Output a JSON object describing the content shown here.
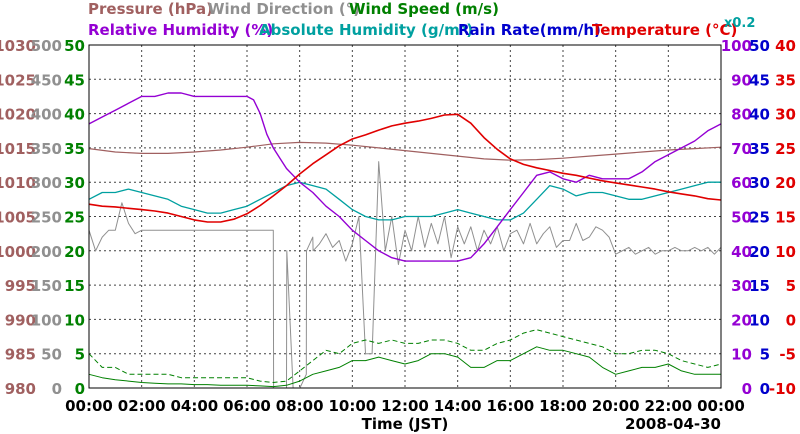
{
  "chart_data": {
    "type": "line",
    "date": "2008-04-30",
    "xlabel": "Time (JST)",
    "x_ticks": [
      "00:00",
      "02:00",
      "04:00",
      "06:00",
      "08:00",
      "10:00",
      "12:00",
      "14:00",
      "16:00",
      "18:00",
      "20:00",
      "22:00",
      "00:00"
    ],
    "grid": true,
    "colors": {
      "pressure": "#a06060",
      "wind_direction": "#909090",
      "wind_speed": "#008000",
      "relative_humidity": "#9400d3",
      "absolute_humidity": "#00a0a0",
      "rain_rate": "#0000cc",
      "temperature": "#e00000"
    },
    "header_row1": [
      {
        "key": "pressure",
        "text": "Pressure (hPa)"
      },
      {
        "key": "wind_direction",
        "text": "Wind Direction (°)"
      },
      {
        "key": "wind_speed",
        "text": "Wind Speed (m/s)"
      }
    ],
    "header_row2": [
      {
        "key": "relative_humidity",
        "text": "Relative Humidity (%)"
      },
      {
        "key": "absolute_humidity",
        "text": "Absolute Humidity (g/m³)"
      },
      {
        "key": "rain_rate",
        "text": "Rain Rate(mm/h)"
      },
      {
        "key": "temperature",
        "text": "Temperature (°C)"
      }
    ],
    "abs_humidity_scale_note": "x0.2",
    "axes": {
      "pressure": {
        "ticks": [
          "1030",
          "1025",
          "1020",
          "1015",
          "1010",
          "1005",
          "1000",
          "995",
          "990",
          "985",
          "980"
        ],
        "range": [
          980,
          1030
        ]
      },
      "wind_direction": {
        "ticks": [
          "500",
          "450",
          "400",
          "350",
          "300",
          "250",
          "200",
          "150",
          "100",
          "50",
          "0"
        ],
        "range": [
          0,
          500
        ]
      },
      "wind_speed": {
        "ticks": [
          "50",
          "45",
          "40",
          "35",
          "30",
          "25",
          "20",
          "15",
          "10",
          "5",
          "0"
        ],
        "range": [
          0,
          50
        ]
      },
      "relative_humidity": {
        "ticks": [
          "100",
          "90",
          "80",
          "70",
          "60",
          "50",
          "40",
          "30",
          "20",
          "10",
          "0"
        ],
        "range": [
          0,
          100
        ]
      },
      "rain_rate": {
        "ticks": [
          "50",
          "45",
          "40",
          "35",
          "30",
          "25",
          "20",
          "15",
          "10",
          "5",
          "0"
        ],
        "range": [
          0,
          50
        ]
      },
      "temperature": {
        "ticks": [
          "40",
          "35",
          "30",
          "25",
          "20",
          "15",
          "10",
          "5",
          "0",
          "-5",
          "-10"
        ],
        "range": [
          -10,
          40
        ]
      }
    },
    "series": [
      {
        "key": "pressure",
        "unit": "hPa",
        "x": [
          0,
          1,
          2,
          3,
          4,
          5,
          6,
          7,
          8,
          9,
          10,
          11,
          12,
          13,
          14,
          15,
          16,
          17,
          18,
          19,
          20,
          21,
          22,
          23,
          24
        ],
        "values": [
          1014.9,
          1014.4,
          1014.2,
          1014.2,
          1014.4,
          1014.7,
          1015.1,
          1015.6,
          1015.8,
          1015.7,
          1015.4,
          1015.0,
          1014.6,
          1014.2,
          1013.8,
          1013.4,
          1013.2,
          1013.3,
          1013.5,
          1013.8,
          1014.1,
          1014.4,
          1014.7,
          1014.9,
          1015.1
        ]
      },
      {
        "key": "relative_humidity",
        "unit": "%",
        "x": [
          0,
          0.5,
          1,
          1.5,
          2,
          2.5,
          3,
          3.5,
          4,
          4.5,
          5,
          5.5,
          6,
          6.25,
          6.5,
          6.75,
          7,
          7.25,
          7.5,
          8,
          8.5,
          9,
          9.5,
          10,
          10.5,
          11,
          11.5,
          12,
          12.5,
          13,
          13.5,
          14,
          14.5,
          15,
          15.5,
          16,
          16.5,
          17,
          17.5,
          18,
          18.5,
          19,
          19.5,
          20,
          20.5,
          21,
          21.5,
          22,
          22.5,
          23,
          23.5,
          24
        ],
        "values": [
          77,
          79,
          81,
          83,
          85,
          85,
          86,
          86,
          85,
          85,
          85,
          85,
          85,
          84,
          80,
          74,
          70,
          67,
          64,
          60,
          57,
          53,
          50,
          46,
          43,
          40,
          38,
          37,
          37,
          37,
          37,
          37,
          38,
          42,
          47,
          52,
          57,
          62,
          63,
          61,
          60,
          62,
          61,
          61,
          61,
          63,
          66,
          68,
          70,
          72,
          75,
          77
        ]
      },
      {
        "key": "absolute_humidity",
        "unit": "g/m³ x0.2",
        "x": [
          0,
          0.5,
          1,
          1.5,
          2,
          2.5,
          3,
          3.5,
          4,
          4.5,
          5,
          5.5,
          6,
          6.5,
          7,
          7.5,
          8,
          8.5,
          9,
          9.5,
          10,
          10.5,
          11,
          11.5,
          12,
          12.5,
          13,
          13.5,
          14,
          14.5,
          15,
          15.5,
          16,
          16.5,
          17,
          17.5,
          18,
          18.5,
          19,
          19.5,
          20,
          20.5,
          21,
          21.5,
          22,
          22.5,
          23,
          23.5,
          24
        ],
        "values": [
          55,
          57,
          57,
          58,
          57,
          56,
          55,
          53,
          52,
          51,
          51,
          52,
          53,
          55,
          57,
          59,
          60,
          59,
          58,
          55,
          52,
          50,
          49,
          49,
          50,
          50,
          50,
          51,
          52,
          51,
          50,
          49,
          49,
          51,
          55,
          59,
          58,
          56,
          57,
          57,
          56,
          55,
          55,
          56,
          57,
          58,
          59,
          60,
          60
        ]
      },
      {
        "key": "temperature",
        "unit": "°C",
        "x": [
          0,
          0.5,
          1,
          1.5,
          2,
          2.5,
          3,
          3.5,
          4,
          4.5,
          5,
          5.5,
          6,
          6.5,
          7,
          7.5,
          8,
          8.5,
          9,
          9.5,
          10,
          10.5,
          11,
          11.5,
          12,
          12.5,
          13,
          13.5,
          14,
          14.5,
          15,
          15.5,
          16,
          16.5,
          17,
          17.5,
          18,
          18.5,
          19,
          19.5,
          20,
          20.5,
          21,
          21.5,
          22,
          22.5,
          23,
          23.5,
          24
        ],
        "values": [
          16.8,
          16.5,
          16.4,
          16.2,
          16.0,
          15.8,
          15.5,
          15.0,
          14.5,
          14.2,
          14.2,
          14.6,
          15.4,
          16.6,
          18.0,
          19.5,
          21.2,
          22.7,
          24.0,
          25.3,
          26.3,
          26.9,
          27.6,
          28.2,
          28.6,
          28.9,
          29.3,
          29.8,
          29.9,
          28.6,
          26.5,
          24.8,
          23.4,
          22.6,
          22.1,
          21.7,
          21.3,
          21.0,
          20.6,
          20.2,
          19.9,
          19.6,
          19.3,
          19.0,
          18.6,
          18.3,
          18.0,
          17.6,
          17.4
        ]
      },
      {
        "key": "wind_direction",
        "unit": "°",
        "x": [
          0,
          0.25,
          0.5,
          0.75,
          1,
          1.25,
          1.5,
          1.75,
          2,
          2.5,
          3,
          3.5,
          4,
          4.5,
          5,
          5.5,
          6,
          6.5,
          7,
          7.01,
          7.1,
          7.5,
          7.51,
          7.75,
          8,
          8.01,
          8.25,
          8.26,
          8.5,
          8.51,
          8.75,
          9,
          9.25,
          9.5,
          9.75,
          10,
          10.25,
          10.5,
          10.75,
          11,
          11.25,
          11.5,
          11.75,
          12,
          12.25,
          12.5,
          12.75,
          13,
          13.25,
          13.5,
          13.75,
          14,
          14.25,
          14.5,
          14.75,
          15,
          15.25,
          15.5,
          15.75,
          16,
          16.25,
          16.5,
          16.75,
          17,
          17.25,
          17.5,
          17.75,
          18,
          18.25,
          18.5,
          18.75,
          19,
          19.25,
          19.5,
          19.75,
          20,
          20.25,
          20.5,
          20.75,
          21,
          21.25,
          21.5,
          21.75,
          22,
          22.25,
          22.5,
          22.75,
          23,
          23.25,
          23.5,
          23.75,
          24
        ],
        "values": [
          230,
          200,
          220,
          230,
          230,
          270,
          240,
          225,
          230,
          230,
          230,
          230,
          230,
          230,
          230,
          230,
          230,
          230,
          230,
          0,
          0,
          0,
          200,
          0,
          0,
          0,
          20,
          200,
          220,
          200,
          210,
          225,
          205,
          215,
          185,
          210,
          250,
          50,
          50,
          330,
          200,
          250,
          180,
          230,
          200,
          250,
          205,
          240,
          210,
          250,
          190,
          235,
          210,
          235,
          200,
          230,
          210,
          235,
          200,
          225,
          230,
          210,
          240,
          210,
          225,
          235,
          205,
          215,
          215,
          240,
          215,
          220,
          235,
          230,
          220,
          195,
          200,
          205,
          195,
          200,
          205,
          195,
          200,
          200,
          205,
          200,
          200,
          205,
          200,
          205,
          195,
          205
        ]
      },
      {
        "key": "wind_speed",
        "unit": "m/s",
        "x": [
          0,
          0.5,
          1,
          1.5,
          2,
          2.5,
          3,
          3.5,
          4,
          4.5,
          5,
          5.5,
          6,
          6.5,
          7,
          7.5,
          8,
          8.5,
          9,
          9.5,
          10,
          10.5,
          11,
          11.5,
          12,
          12.5,
          13,
          13.5,
          14,
          14.5,
          15,
          15.5,
          16,
          16.5,
          17,
          17.5,
          18,
          18.5,
          19,
          19.5,
          20,
          20.5,
          21,
          21.5,
          22,
          22.5,
          23,
          23.5,
          24
        ],
        "values": [
          2,
          1.5,
          1.2,
          1.0,
          0.8,
          0.7,
          0.6,
          0.6,
          0.5,
          0.5,
          0.4,
          0.4,
          0.4,
          0.3,
          0.2,
          0.4,
          1,
          2,
          2.5,
          3,
          4,
          4,
          4.5,
          4,
          3.5,
          4,
          5,
          5,
          4.5,
          3,
          3,
          4,
          4,
          5,
          6,
          5.5,
          5.5,
          5,
          4.5,
          3,
          2,
          2.5,
          3,
          3,
          3.5,
          2.5,
          2,
          2,
          2
        ]
      },
      {
        "key": "wind_speed_gust",
        "unit": "m/s",
        "x": [
          0,
          0.5,
          1,
          1.5,
          2,
          2.5,
          3,
          3.5,
          4,
          4.5,
          5,
          5.5,
          6,
          6.5,
          7,
          7.5,
          8,
          8.5,
          9,
          9.5,
          10,
          10.5,
          11,
          11.5,
          12,
          12.5,
          13,
          13.5,
          14,
          14.5,
          15,
          15.5,
          16,
          16.5,
          17,
          17.5,
          18,
          18.5,
          19,
          19.5,
          20,
          20.5,
          21,
          21.5,
          22,
          22.5,
          23,
          23.5,
          24
        ],
        "values": [
          5,
          3,
          3,
          2,
          2,
          2,
          2,
          1.5,
          1.5,
          1.5,
          1.5,
          1.5,
          1.5,
          1,
          0.8,
          1,
          2.5,
          4,
          5.5,
          5,
          6.5,
          7,
          6.5,
          7,
          6.5,
          6.5,
          7,
          7,
          6.5,
          5.5,
          5.5,
          6.5,
          7,
          8,
          8.5,
          8,
          7.5,
          7,
          6.5,
          6,
          5,
          5,
          5.5,
          5.5,
          5,
          4,
          3.5,
          3,
          3.5
        ]
      }
    ]
  }
}
